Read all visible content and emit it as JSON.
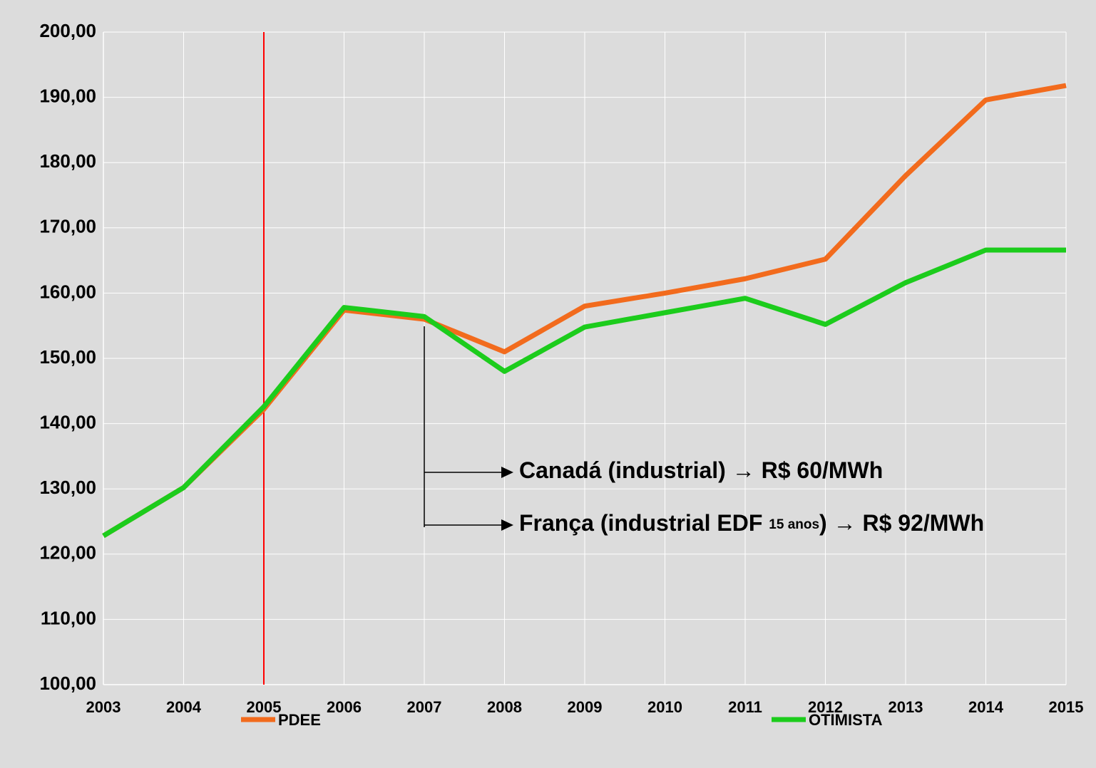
{
  "chart_data": {
    "type": "line",
    "x": [
      2003,
      2004,
      2005,
      2006,
      2007,
      2008,
      2009,
      2010,
      2011,
      2012,
      2013,
      2014,
      2015
    ],
    "series": [
      {
        "name": "PDEE",
        "color": "#f26b1d",
        "values": [
          122.8,
          130.2,
          142.2,
          157.4,
          156.0,
          151.0,
          158.0,
          160.0,
          162.2,
          165.2,
          178.0,
          189.6,
          191.8
        ]
      },
      {
        "name": "OTIMISTA",
        "color": "#1ccc1c",
        "values": [
          122.8,
          130.2,
          142.6,
          157.8,
          156.4,
          148.0,
          154.8,
          157.0,
          159.2,
          155.2,
          161.6,
          166.6,
          166.6
        ]
      }
    ],
    "xlim": [
      2003,
      2015
    ],
    "xticks": [
      2003,
      2004,
      2005,
      2006,
      2007,
      2008,
      2009,
      2010,
      2011,
      2012,
      2013,
      2014,
      2015
    ],
    "ylim": [
      100,
      200
    ],
    "yticks": [
      {
        "value": 100,
        "label": "100,00"
      },
      {
        "value": 110,
        "label": "110,00"
      },
      {
        "value": 120,
        "label": "120,00"
      },
      {
        "value": 130,
        "label": "130,00"
      },
      {
        "value": 140,
        "label": "140,00"
      },
      {
        "value": 150,
        "label": "150,00"
      },
      {
        "value": 160,
        "label": "160,00"
      },
      {
        "value": 170,
        "label": "170,00"
      },
      {
        "value": 180,
        "label": "180,00"
      },
      {
        "value": 190,
        "label": "190,00"
      },
      {
        "value": 200,
        "label": "200,00"
      }
    ],
    "grid": true,
    "vline": {
      "x": 2005,
      "color": "#ff0000"
    },
    "annotations": [
      {
        "parts": [
          "Canadá (industrial) → R$ 60/MWh"
        ]
      },
      {
        "parts": [
          "França (industrial EDF ",
          "15 anos",
          ") → R$ 92/MWh"
        ]
      }
    ],
    "legend": "bottom"
  }
}
